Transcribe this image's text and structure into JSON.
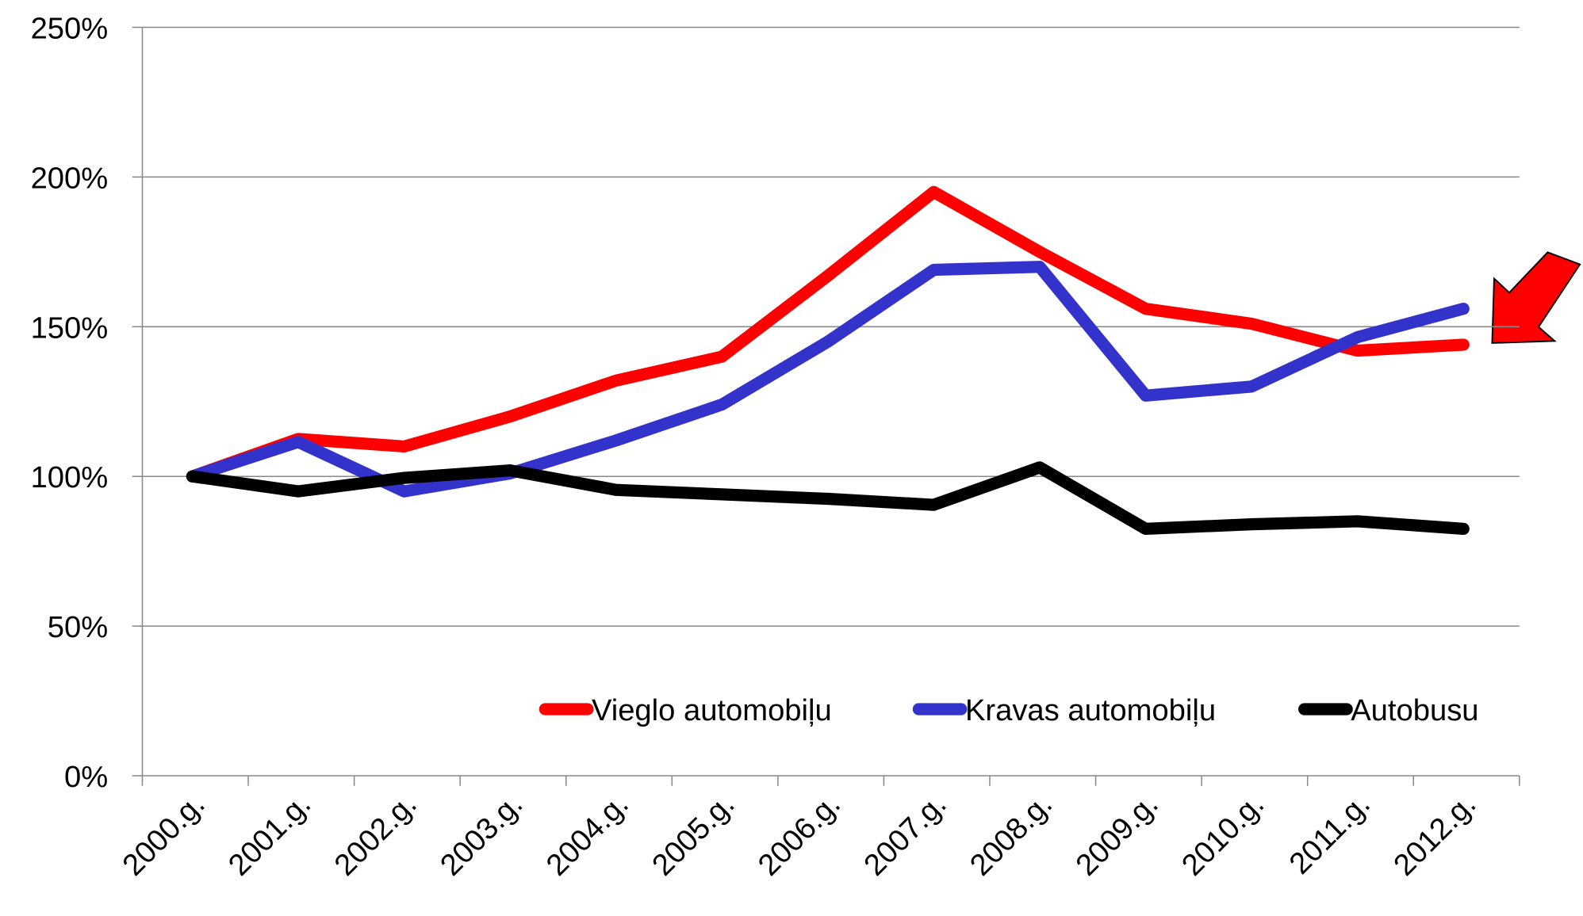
{
  "chart_data": {
    "type": "line",
    "categories": [
      "2000.g.",
      "2001.g.",
      "2002.g.",
      "2003.g.",
      "2004.g.",
      "2005.g.",
      "2006.g.",
      "2007.g.",
      "2008.g.",
      "2009.g.",
      "2010.g.",
      "2011.g.",
      "2012.g."
    ],
    "series": [
      {
        "name": "Vieglo automobiļu",
        "color": "#ff0000",
        "values": [
          100,
          112.5,
          110,
          120,
          132,
          140,
          167,
          195,
          175,
          156,
          151,
          142,
          144
        ]
      },
      {
        "name": "Kravas automobiļu",
        "color": "#3333cc",
        "values": [
          100,
          111.5,
          95,
          101,
          112,
          124,
          145,
          169,
          170,
          127,
          130,
          146.5,
          156
        ]
      },
      {
        "name": "Autobusu",
        "color": "#000000",
        "values": [
          100,
          95,
          99.5,
          102,
          95.5,
          94,
          92.5,
          90.5,
          103,
          82.5,
          84,
          85,
          82.5
        ]
      }
    ],
    "ylim": [
      0,
      250
    ],
    "yticks": [
      {
        "value": 0,
        "label": "0%"
      },
      {
        "value": 50,
        "label": "50%"
      },
      {
        "value": 100,
        "label": "100%"
      },
      {
        "value": 150,
        "label": "150%"
      },
      {
        "value": 200,
        "label": "200%"
      },
      {
        "value": 250,
        "label": "250%"
      }
    ],
    "grid": true,
    "legend": "bottom"
  }
}
